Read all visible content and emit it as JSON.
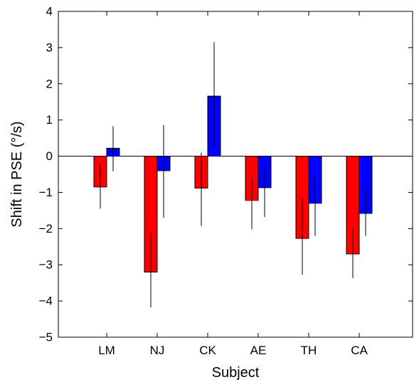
{
  "chart_data": {
    "type": "bar",
    "title": "",
    "xlabel": "Subject",
    "ylabel": "Shift in PSE  (°/s)",
    "ylim": [
      -5,
      4
    ],
    "yticks": [
      4,
      3,
      2,
      1,
      0,
      -1,
      -2,
      -3,
      -4,
      -5
    ],
    "ytick_labels": [
      "4",
      "3",
      "2",
      "1",
      "0",
      "−1",
      "−2",
      "−3",
      "−4",
      "−5"
    ],
    "categories": [
      "LM",
      "NJ",
      "CK",
      "AE",
      "TH",
      "CA"
    ],
    "grid": false,
    "zero_line": true,
    "series": [
      {
        "color": "#ff0000",
        "values": [
          -0.85,
          -3.2,
          -0.88,
          -1.22,
          -2.27,
          -2.7
        ],
        "error_low": [
          -1.45,
          -4.18,
          -1.93,
          -2.02,
          -3.27,
          -3.37
        ],
        "error_high": [
          -0.22,
          -2.1,
          0.1,
          -0.62,
          -1.17,
          -2.0
        ]
      },
      {
        "color": "#0000ff",
        "values": [
          0.22,
          -0.4,
          1.66,
          -0.87,
          -1.3,
          -1.58
        ],
        "error_low": [
          -0.42,
          -1.7,
          0.28,
          -1.68,
          -2.2,
          -2.2
        ],
        "error_high": [
          0.83,
          0.86,
          3.15,
          -0.22,
          -0.57,
          -0.92
        ]
      }
    ]
  }
}
